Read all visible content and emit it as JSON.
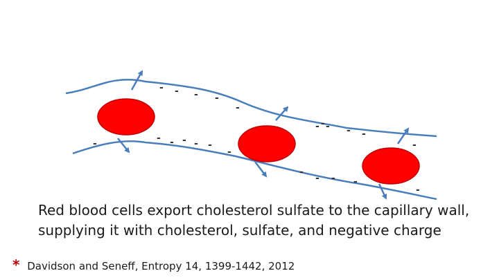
{
  "caption": {
    "line1": "Red blood cells export cholesterol sulfate to the capillary wall,",
    "line2": "supplying it with cholesterol, sulfate, and negative charge"
  },
  "citation": {
    "marker": "*",
    "text": "Davidson and Seneff, Entropy 14, 1399-1442, 2012"
  },
  "diagram": {
    "charge_symbol": "-",
    "colors": {
      "cell_fill": "#ff0000",
      "cell_stroke": "#c00000",
      "wall": "#4a7ebb",
      "charge": "#333333"
    }
  }
}
